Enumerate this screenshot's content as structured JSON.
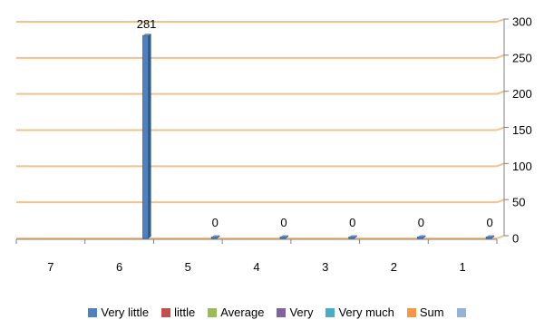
{
  "chart_data": {
    "type": "bar",
    "categories": [
      "7",
      "6",
      "5",
      "4",
      "3",
      "2",
      "1"
    ],
    "series": [
      {
        "name": "Very little",
        "color": "#4F81BD",
        "values": [
          null,
          281,
          0,
          0,
          0,
          0,
          0
        ]
      },
      {
        "name": "little",
        "color": "#C0504D"
      },
      {
        "name": "Average",
        "color": "#9BBB59"
      },
      {
        "name": "Very",
        "color": "#8064A2"
      },
      {
        "name": "Very much",
        "color": "#4BACC6"
      },
      {
        "name": "Sum",
        "color": "#F79646"
      },
      {
        "name": "",
        "color": "#95B3D7"
      }
    ],
    "data_labels": [
      "",
      "281",
      "0",
      "0",
      "0",
      "0",
      "0"
    ],
    "y_ticks": [
      "0",
      "50",
      "100",
      "150",
      "200",
      "250",
      "300"
    ],
    "ylim": [
      0,
      300
    ],
    "grid": true,
    "grid_color": "#F5C08A",
    "legend_position": "bottom",
    "y_axis_side": "right"
  }
}
